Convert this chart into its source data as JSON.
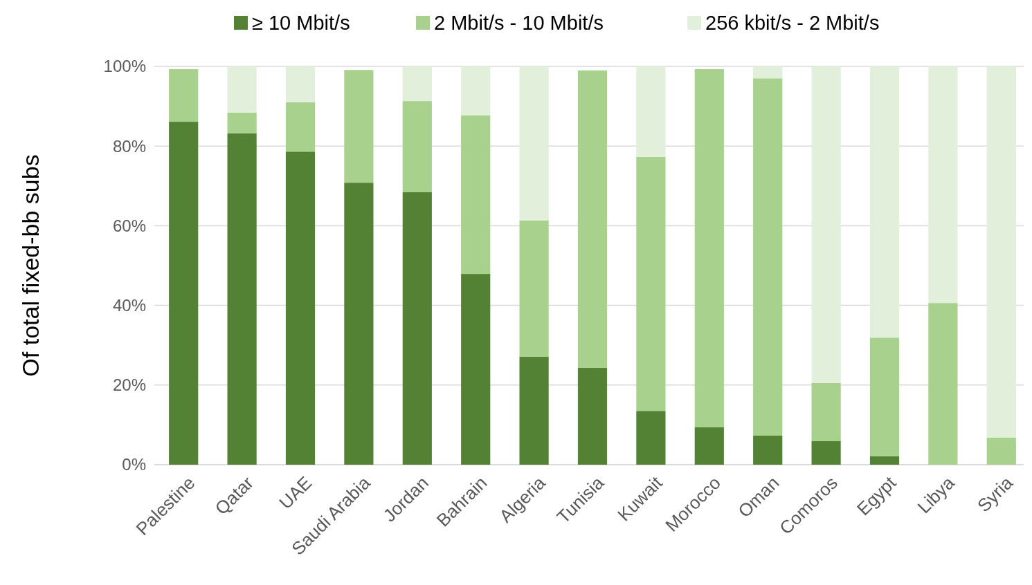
{
  "chart_data": {
    "type": "bar",
    "stacked": true,
    "ylabel": "Of total fixed-bb subs",
    "categories": [
      "Palestine",
      "Qatar",
      "UAE",
      "Saudi Arabia",
      "Jordan",
      "Bahrain",
      "Algeria",
      "Tunisia",
      "Kuwait",
      "Morocco",
      "Oman",
      "Comoros",
      "Egypt",
      "Libya",
      "Syria"
    ],
    "series": [
      {
        "name": "≥ 10 Mbit/s",
        "color": "#548235",
        "values": [
          86.1,
          83.2,
          78.6,
          70.8,
          68.4,
          47.9,
          27.1,
          24.3,
          13.5,
          9.4,
          7.3,
          5.9,
          2.1,
          0,
          0
        ]
      },
      {
        "name": "2 Mbit/s - 10 Mbit/s",
        "color": "#a9d18e",
        "values": [
          13.2,
          5.2,
          12.4,
          28.3,
          22.9,
          39.8,
          34.2,
          74.7,
          63.8,
          89.9,
          89.7,
          14.6,
          29.8,
          40.6,
          6.8
        ]
      },
      {
        "name": "256 kbit/s - 2 Mbit/s",
        "color": "#e2efda",
        "values": [
          0,
          11.6,
          9.0,
          0,
          8.7,
          12.3,
          38.7,
          0,
          22.7,
          0,
          3.0,
          79.5,
          68.1,
          59.4,
          93.2
        ]
      }
    ],
    "ylim": [
      0,
      100
    ],
    "yticks": [
      {
        "value": 0,
        "label": "0%"
      },
      {
        "value": 20,
        "label": "20%"
      },
      {
        "value": 40,
        "label": "40%"
      },
      {
        "value": 60,
        "label": "60%"
      },
      {
        "value": 80,
        "label": "80%"
      },
      {
        "value": 100,
        "label": "100%"
      }
    ],
    "grid": "y",
    "legend": "top"
  }
}
